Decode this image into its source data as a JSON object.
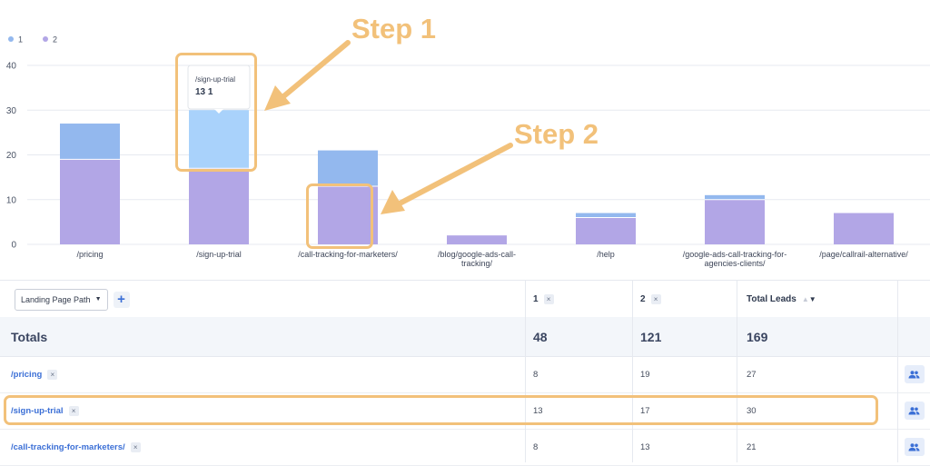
{
  "chart_data": {
    "type": "bar",
    "stacked": true,
    "categories": [
      "/pricing",
      "/sign-up-trial",
      "/call-tracking-for-marketers/",
      "/blog/google-ads-call-tracking/",
      "/help",
      "/google-ads-call-tracking-for-agencies-clients/",
      "/page/callrail-alternative/"
    ],
    "category_lines": [
      [
        "/pricing"
      ],
      [
        "/sign-up-trial"
      ],
      [
        "/call-tracking-for-marketers/"
      ],
      [
        "/blog/google-ads-call-",
        "tracking/"
      ],
      [
        "/help"
      ],
      [
        "/google-ads-call-tracking-for-",
        "agencies-clients/"
      ],
      [
        "/page/callrail-alternative/"
      ]
    ],
    "series": [
      {
        "name": "2",
        "color": "#b2a6e6",
        "values": [
          19,
          17,
          13,
          2,
          6,
          10,
          7
        ]
      },
      {
        "name": "1",
        "color": "#93b8ee",
        "values": [
          8,
          13,
          8,
          0,
          1,
          1,
          0
        ]
      }
    ],
    "y_ticks": [
      "0",
      "10",
      "20",
      "30",
      "40"
    ],
    "ylim": [
      0,
      40
    ],
    "grid": true,
    "legend_position": "top-left",
    "highlight_color": "#a9d2fb",
    "tooltip": {
      "title": "/sign-up-trial",
      "value": "13 1"
    }
  },
  "annotations": {
    "step1": "Step 1",
    "step2": "Step 2",
    "color": "#f2c17a"
  },
  "table": {
    "dimension_label": "Landing Page Path",
    "add_label": "+",
    "columns": [
      {
        "label": "1",
        "removable": true
      },
      {
        "label": "2",
        "removable": true
      },
      {
        "label": "Total Leads",
        "sortable": true
      }
    ],
    "totals": {
      "label": "Totals",
      "v1": "48",
      "v2": "121",
      "total": "169"
    },
    "rows": [
      {
        "path": "/pricing",
        "v1": "8",
        "v2": "19",
        "total": "27"
      },
      {
        "path": "/sign-up-trial",
        "v1": "13",
        "v2": "17",
        "total": "30"
      },
      {
        "path": "/call-tracking-for-marketers/",
        "v1": "8",
        "v2": "13",
        "total": "21"
      }
    ],
    "remove_glyph": "×",
    "row_action_icon": "people-icon",
    "accent_color": "#3b6fd6"
  }
}
